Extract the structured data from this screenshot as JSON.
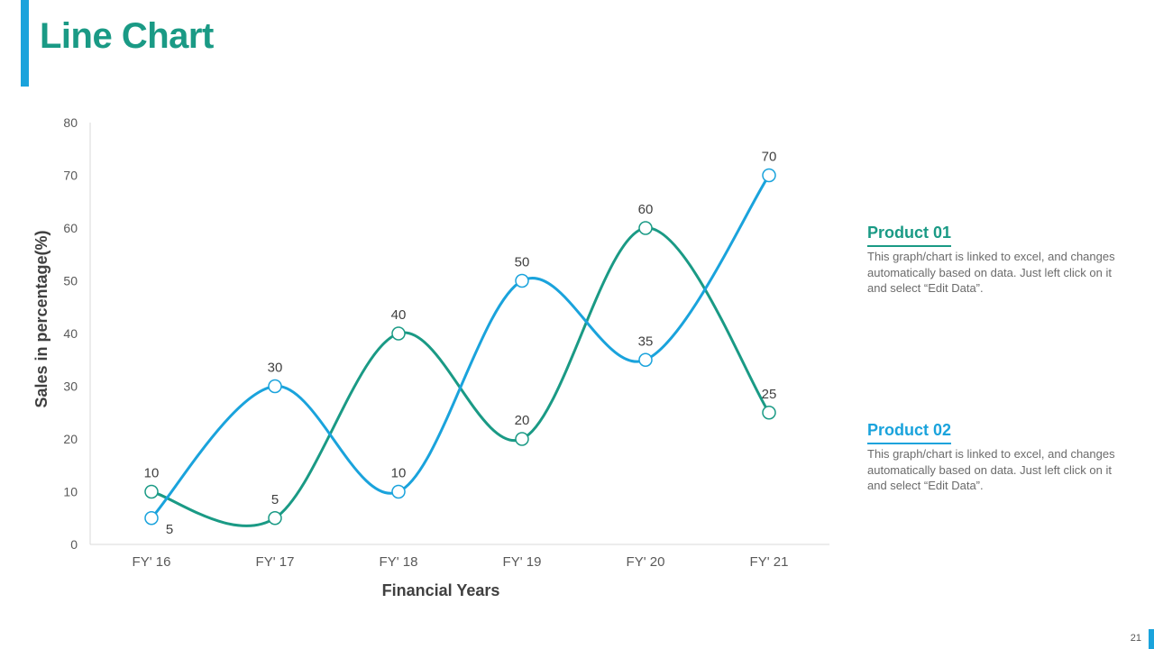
{
  "slide": {
    "title": "Line Chart",
    "page_number": "21",
    "colors": {
      "accent_blue": "#1aa3dc",
      "accent_teal": "#1a9a85"
    }
  },
  "legend_blocks": [
    {
      "title": "Product 01",
      "description": "This graph/chart is linked to excel, and changes automatically based on data. Just left click on it and select “Edit Data”.",
      "color": "#1a9a85"
    },
    {
      "title": "Product 02",
      "description": "This graph/chart is linked to excel, and changes automatically based on data. Just left click on it and select “Edit Data”.",
      "color": "#1aa3dc"
    }
  ],
  "chart_data": {
    "type": "line",
    "title": "",
    "xlabel": "Financial Years",
    "ylabel": "Sales in percentage(%)",
    "categories": [
      "FY' 16",
      "FY' 17",
      "FY' 18",
      "FY' 19",
      "FY' 20",
      "FY' 21"
    ],
    "ylim": [
      0,
      80
    ],
    "yticks": [
      0,
      10,
      20,
      30,
      40,
      50,
      60,
      70,
      80
    ],
    "grid": false,
    "series": [
      {
        "name": "Product 01",
        "color": "#1a9a85",
        "values": [
          10,
          5,
          40,
          20,
          60,
          25
        ]
      },
      {
        "name": "Product 02",
        "color": "#1aa3dc",
        "values": [
          5,
          30,
          10,
          50,
          35,
          70
        ]
      }
    ]
  }
}
